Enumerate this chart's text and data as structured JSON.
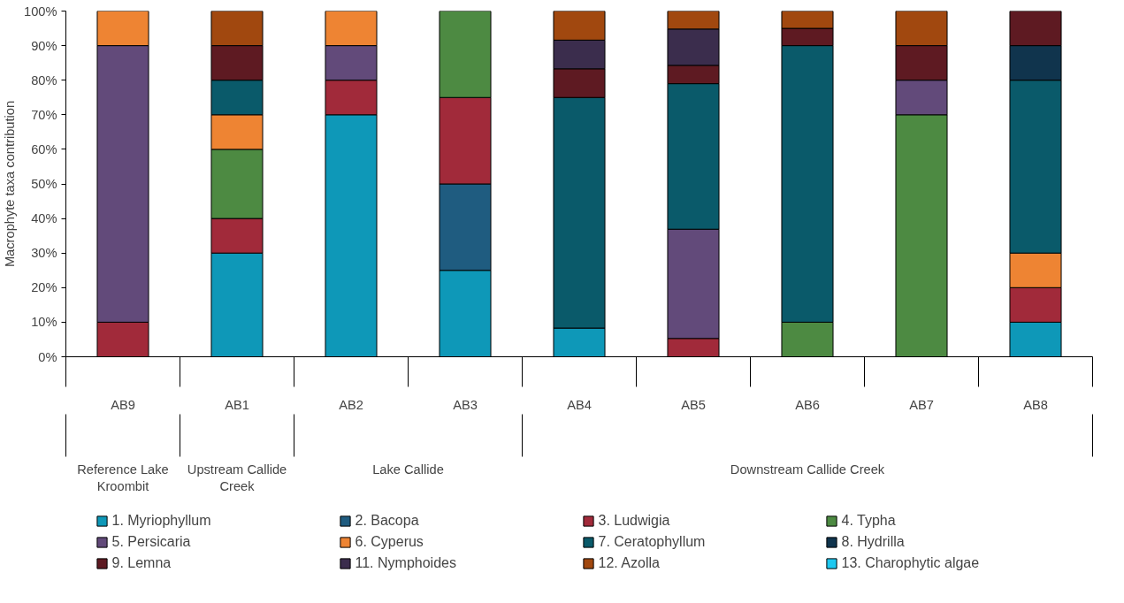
{
  "chart_data": {
    "type": "bar",
    "stacked": true,
    "ylabel": "Macrophyte taxa contribution",
    "categories": [
      "AB9",
      "AB1",
      "AB2",
      "AB3",
      "AB4",
      "AB5",
      "AB6",
      "AB7",
      "AB8"
    ],
    "series": [
      {
        "name": "1. Myriophyllum",
        "color": "#0e98b8",
        "values": [
          null,
          30,
          70,
          25,
          8.3,
          null,
          null,
          null,
          10
        ]
      },
      {
        "name": "2. Bacopa",
        "color": "#1f5c80",
        "values": [
          null,
          null,
          null,
          25,
          null,
          null,
          null,
          null,
          null
        ]
      },
      {
        "name": "3. Ludwigia",
        "color": "#a12a3a",
        "values": [
          10,
          10,
          10,
          25,
          null,
          5.3,
          null,
          null,
          10
        ]
      },
      {
        "name": "4. Typha",
        "color": "#4d8a42",
        "values": [
          null,
          20,
          null,
          25,
          null,
          null,
          10,
          70,
          null
        ]
      },
      {
        "name": "5. Persicaria",
        "color": "#624a7a",
        "values": [
          80,
          null,
          10,
          null,
          null,
          31.6,
          null,
          10,
          null
        ]
      },
      {
        "name": "6. Cyperus",
        "color": "#ee8433",
        "values": [
          10,
          10,
          10,
          null,
          null,
          null,
          null,
          null,
          10
        ]
      },
      {
        "name": "7. Ceratophyllum",
        "color": "#0a5a6a",
        "values": [
          null,
          10,
          null,
          null,
          66.7,
          42.1,
          80,
          null,
          50
        ]
      },
      {
        "name": "8. Hydrilla",
        "color": "#10344d",
        "values": [
          null,
          null,
          null,
          null,
          null,
          null,
          null,
          null,
          10
        ]
      },
      {
        "name": "9. Lemna",
        "color": "#5e1a22",
        "values": [
          null,
          10,
          null,
          null,
          8.3,
          5.3,
          5,
          10,
          10
        ]
      },
      {
        "name": "11. Nymphoides",
        "color": "#3b2d4d",
        "values": [
          null,
          null,
          null,
          null,
          8.3,
          10.5,
          null,
          null,
          null
        ]
      },
      {
        "name": "12. Azolla",
        "color": "#a1480f",
        "values": [
          null,
          10,
          null,
          null,
          8.4,
          5.2,
          5,
          10,
          null
        ]
      },
      {
        "name": "13. Charophytic algae",
        "color": "#1ec8f0",
        "values": [
          null,
          null,
          null,
          null,
          null,
          null,
          null,
          null,
          null
        ]
      }
    ],
    "ylim": [
      0,
      100
    ],
    "yticks": [
      {
        "value": 0,
        "label": "0%"
      },
      {
        "value": 10,
        "label": "10%"
      },
      {
        "value": 20,
        "label": "20%"
      },
      {
        "value": 30,
        "label": "30%"
      },
      {
        "value": 40,
        "label": "40%"
      },
      {
        "value": 50,
        "label": "50%"
      },
      {
        "value": 60,
        "label": "60%"
      },
      {
        "value": 70,
        "label": "70%"
      },
      {
        "value": 80,
        "label": "80%"
      },
      {
        "value": 90,
        "label": "90%"
      },
      {
        "value": 100,
        "label": "100%"
      }
    ],
    "annotations": [
      "Reference Lake Kroombit",
      "Upstream Callide Creek",
      "Lake Callide",
      "Downstream Callide Creek"
    ],
    "grid": false,
    "legend": "bottom"
  }
}
